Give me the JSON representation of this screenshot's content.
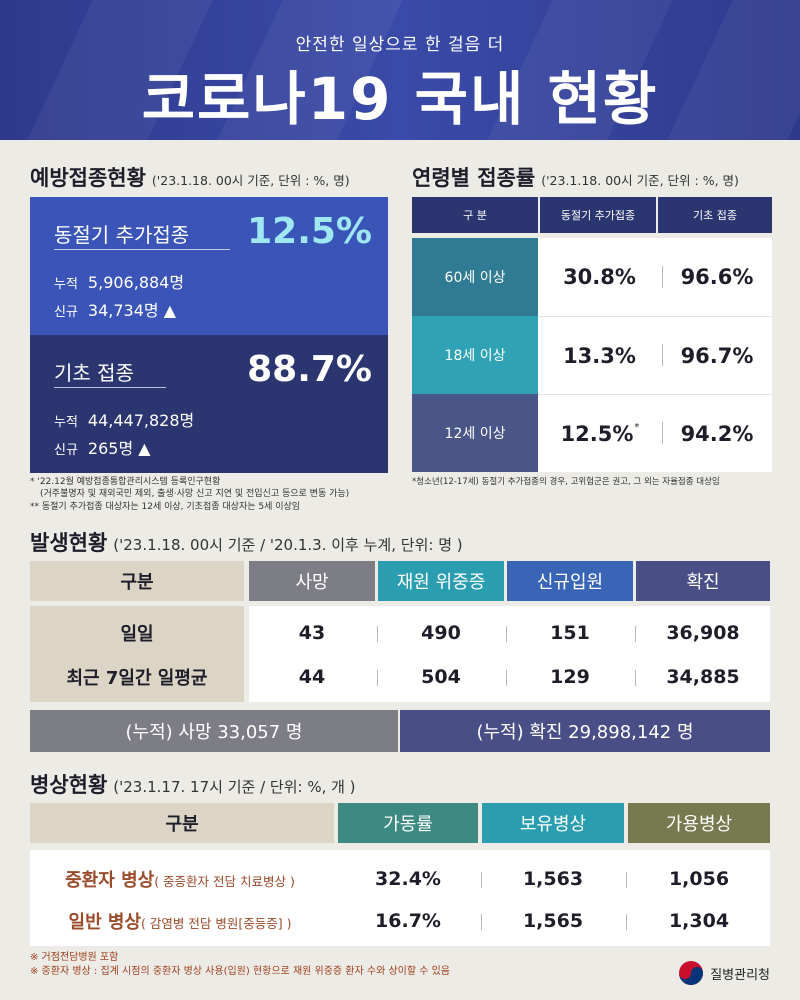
{
  "header": {
    "subtitle": "안전한 일상으로 한 걸음 더",
    "title": "코로나19 국내 현황"
  },
  "vaccination": {
    "title": "예방접종현황",
    "note": "('23.1.18. 00시 기준, 단위 : %, 명)",
    "booster": {
      "label": "동절기 추가접종",
      "rate": "12.5%",
      "cumulative_label": "누적",
      "cumulative": "5,906,884명",
      "new_label": "신규",
      "new": "34,734명 ▲"
    },
    "basic": {
      "label": "기초 접종",
      "rate": "88.7%",
      "cumulative_label": "누적",
      "cumulative": "44,447,828명",
      "new_label": "신규",
      "new": "265명 ▲"
    },
    "footnote1": "* '22.12월 예방접종통합관리시스템 등록인구현황",
    "footnote2": "(거주불명자 및 재외국민 제외, 출생·사망 신고 지연 및 전입신고 등으로 변동 가능)",
    "footnote3": "** 동절기 추가접종 대상자는 12세 이상, 기초접종 대상자는 5세 이상임"
  },
  "age_rate": {
    "title": "연령별 접종률",
    "note": "('23.1.18. 00시 기준, 단위 : %, 명)",
    "headers": [
      "구 분",
      "동절기 추가접종",
      "기초 접종"
    ],
    "rows": [
      {
        "label": "60세 이상",
        "booster": "30.8%",
        "booster_mark": "",
        "basic": "96.6%"
      },
      {
        "label": "18세 이상",
        "booster": "13.3%",
        "booster_mark": "",
        "basic": "96.7%"
      },
      {
        "label": "12세 이상",
        "booster": "12.5%",
        "booster_mark": "*",
        "basic": "94.2%"
      }
    ],
    "footnote": "*청소년(12-17세) 동절기 추가접종의 경우, 고위험군은 권고, 그 외는 자율접종 대상임"
  },
  "occurrence": {
    "title": "발생현황",
    "note": "('23.1.18. 00시 기준 / '20.1.3. 이후 누계, 단위: 명 )",
    "headers": [
      "구분",
      "사망",
      "재원 위중증",
      "신규입원",
      "확진"
    ],
    "rows": [
      {
        "label": "일일",
        "values": [
          "43",
          "490",
          "151",
          "36,908"
        ]
      },
      {
        "label": "최근 7일간 일평균",
        "values": [
          "44",
          "504",
          "129",
          "34,885"
        ]
      }
    ],
    "cumulative_deaths": "(누적) 사망  33,057 명",
    "cumulative_confirmed": "(누적) 확진  29,898,142 명"
  },
  "beds": {
    "title": "병상현황",
    "note": "('23.1.17. 17시 기준 / 단위: %, 개 )",
    "headers": [
      "구분",
      "가동률",
      "보유병상",
      "가용병상"
    ],
    "rows": [
      {
        "label": "중환자 병상",
        "sub": "( 중증환자 전담 치료병상 )",
        "values": [
          "32.4%",
          "1,563",
          "1,056"
        ]
      },
      {
        "label": "일반 병상",
        "sub": "( 감염병 전담 병원[중등증] )",
        "values": [
          "16.7%",
          "1,565",
          "1,304"
        ]
      }
    ],
    "footnote1": "※ 거점전담병원 포함",
    "footnote2": "※ 중환자 병상 : 집계 시점의 중환자 병상 사용(입원) 현황으로 재원 위중증 환자 수와 상이할 수 있음"
  },
  "agency": "질병관리청",
  "colors": {
    "header_bg": "#2e3a8c",
    "booster_bg": "#3a54b8",
    "basic_bg": "#2b3670",
    "age60": "#2f7b93",
    "age18": "#2fa3b5",
    "age12": "#4a5588",
    "death": "#7d7d85",
    "icu": "#2a9eb0",
    "new_admit": "#3a64b6",
    "confirmed": "#4a4e86",
    "beige": "#dcd5c6",
    "util": "#3d8a82",
    "own": "#2a9eb0",
    "avail": "#767a4e"
  }
}
